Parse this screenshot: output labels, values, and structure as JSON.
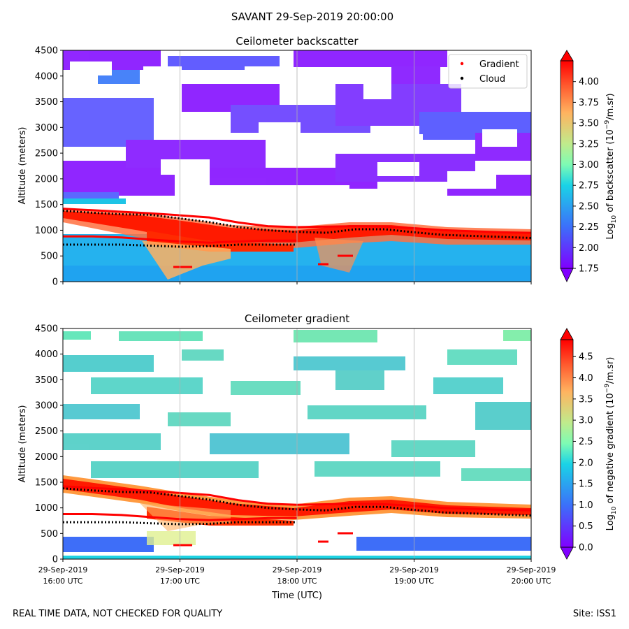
{
  "figure": {
    "suptitle": "SAVANT 29-Sep-2019 20:00:00",
    "footer_left": "REAL TIME DATA, NOT CHECKED FOR QUALITY",
    "footer_right": "Site: ISS1",
    "xlabel": "Time (UTC)",
    "x_ticks": [
      {
        "date": "29-Sep-2019",
        "time": "16:00 UTC"
      },
      {
        "date": "29-Sep-2019",
        "time": "17:00 UTC"
      },
      {
        "date": "29-Sep-2019",
        "time": "18:00 UTC"
      },
      {
        "date": "29-Sep-2019",
        "time": "19:00 UTC"
      },
      {
        "date": "29-Sep-2019",
        "time": "20:00 UTC"
      }
    ]
  },
  "chart_data": [
    {
      "type": "heatmap",
      "title": "Ceilometer backscatter",
      "xlabel": "",
      "ylabel": "Altitude (meters)",
      "xlim_hours": [
        16,
        20
      ],
      "ylim": [
        0,
        4500
      ],
      "y_ticks": [
        "0",
        "500",
        "1000",
        "1500",
        "2000",
        "2500",
        "3000",
        "3500",
        "4000",
        "4500"
      ],
      "colorbar": {
        "label": "Log10 of backscatter (10^-9/m.sr)",
        "label_main": "Log",
        "label_sub": "10",
        "label_mid": " of backscatter (10",
        "label_sup": "−9",
        "label_end": "/m.sr)",
        "range": [
          1.75,
          4.25
        ],
        "ticks": [
          "1.75",
          "2.00",
          "2.25",
          "2.50",
          "2.75",
          "3.00",
          "3.25",
          "3.50",
          "3.75",
          "4.00"
        ],
        "colormap": "rainbow"
      },
      "legend": {
        "placement": "top-right",
        "entries": [
          {
            "label": "Gradient",
            "color": "#ff0000"
          },
          {
            "label": "Cloud",
            "color": "#000000"
          }
        ]
      }
    },
    {
      "type": "heatmap",
      "title": "Ceilometer gradient",
      "xlabel": "Time (UTC)",
      "ylabel": "Altitude (meters)",
      "xlim_hours": [
        16,
        20
      ],
      "ylim": [
        0,
        4500
      ],
      "y_ticks": [
        "0",
        "500",
        "1000",
        "1500",
        "2000",
        "2500",
        "3000",
        "3500",
        "4000",
        "4500"
      ],
      "colorbar": {
        "label": "Log10 of negative gradient (10^-9/m.sr)",
        "label_main": "Log",
        "label_sub": "10",
        "label_mid": " of negative gradient (10",
        "label_sup": "−9",
        "label_end": "/m.sr)",
        "range": [
          0.0,
          4.9
        ],
        "ticks": [
          "0.0",
          "0.5",
          "1.0",
          "1.5",
          "2.0",
          "2.5",
          "3.0",
          "3.5",
          "4.0",
          "4.5"
        ],
        "colormap": "rainbow"
      }
    }
  ],
  "series": {
    "time_hours": [
      16.0,
      16.25,
      16.5,
      16.75,
      17.0,
      17.25,
      17.5,
      17.75,
      18.0,
      18.25,
      18.5,
      18.75,
      19.0,
      19.25,
      19.5,
      19.75,
      20.0
    ],
    "cloud_base_m": [
      1380,
      1340,
      1310,
      1300,
      1230,
      1160,
      1060,
      1000,
      970,
      950,
      1020,
      1020,
      960,
      910,
      890,
      870,
      850
    ],
    "lower_cloud_m": [
      720,
      720,
      720,
      700,
      680,
      690,
      720,
      720,
      720,
      null,
      null,
      null,
      null,
      null,
      null,
      null,
      null
    ],
    "gradient_layer_m": [
      1420,
      1390,
      1360,
      1330,
      1290,
      1250,
      1150,
      1080,
      1060,
      1070,
      1080,
      1070,
      1040,
      1000,
      980,
      960,
      950
    ],
    "lower_gradient_m": [
      880,
      880,
      860,
      820,
      780,
      760,
      780,
      800,
      800,
      null,
      null,
      null,
      null,
      null,
      null,
      null,
      null
    ]
  }
}
